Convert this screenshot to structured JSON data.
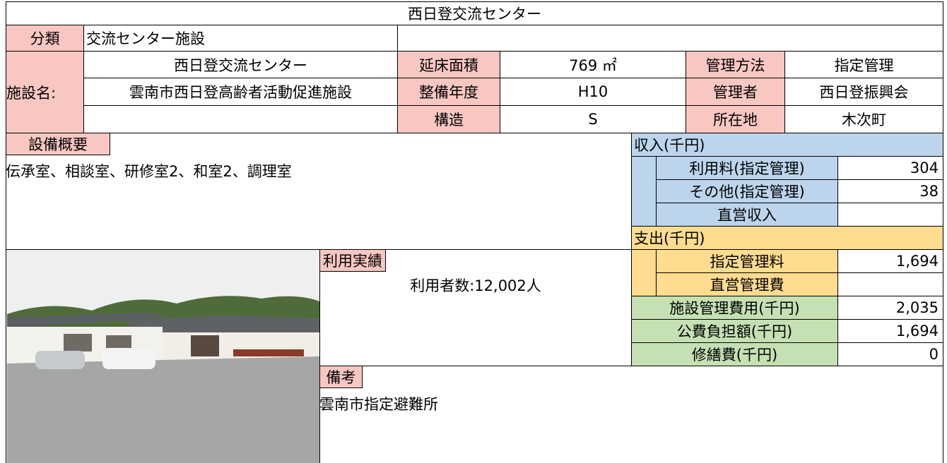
{
  "title": "西日登交流センター",
  "classification": {
    "label": "分類",
    "value": "交流センター施設"
  },
  "facility": {
    "label": "施設名:",
    "rows": [
      {
        "name": "西日登交流センター",
        "items": [
          {
            "label": "延床面積",
            "value": "769 ㎡"
          },
          {
            "label": "管理方法",
            "value": "指定管理"
          }
        ]
      },
      {
        "name": "雲南市西日登高齢者活動促進施設",
        "items": [
          {
            "label": "整備年度",
            "value": "H10"
          },
          {
            "label": "管理者",
            "value": "西日登振興会"
          }
        ]
      },
      {
        "items": [
          {
            "label": "構造",
            "value": "S"
          },
          {
            "label": "所在地",
            "value": "木次町"
          }
        ]
      }
    ]
  },
  "equipment": {
    "label": "設備概要",
    "text": "伝承室、相談室、研修室2、和室2、調理室"
  },
  "income": {
    "label": "収入(千円)",
    "items": [
      {
        "label": "利用料(指定管理)",
        "value": "304"
      },
      {
        "label": "その他(指定管理)",
        "value": "38"
      },
      {
        "label": "直営収入"
      }
    ]
  },
  "expense": {
    "label": "支出(千円)",
    "items": [
      {
        "label": "指定管理料",
        "value": "1,694"
      },
      {
        "label": "直営管理費"
      }
    ]
  },
  "totals": [
    {
      "label": "施設管理費用(千円)",
      "value": "2,035"
    },
    {
      "label": "公費負担額(千円)",
      "value": "1,694"
    },
    {
      "label": "修繕費(千円)",
      "value": "0"
    }
  ],
  "usage": {
    "label": "利用実績",
    "text": "利用者数:12,002人"
  },
  "remarks": {
    "label": "備考",
    "text": "雲南市指定避難所"
  }
}
